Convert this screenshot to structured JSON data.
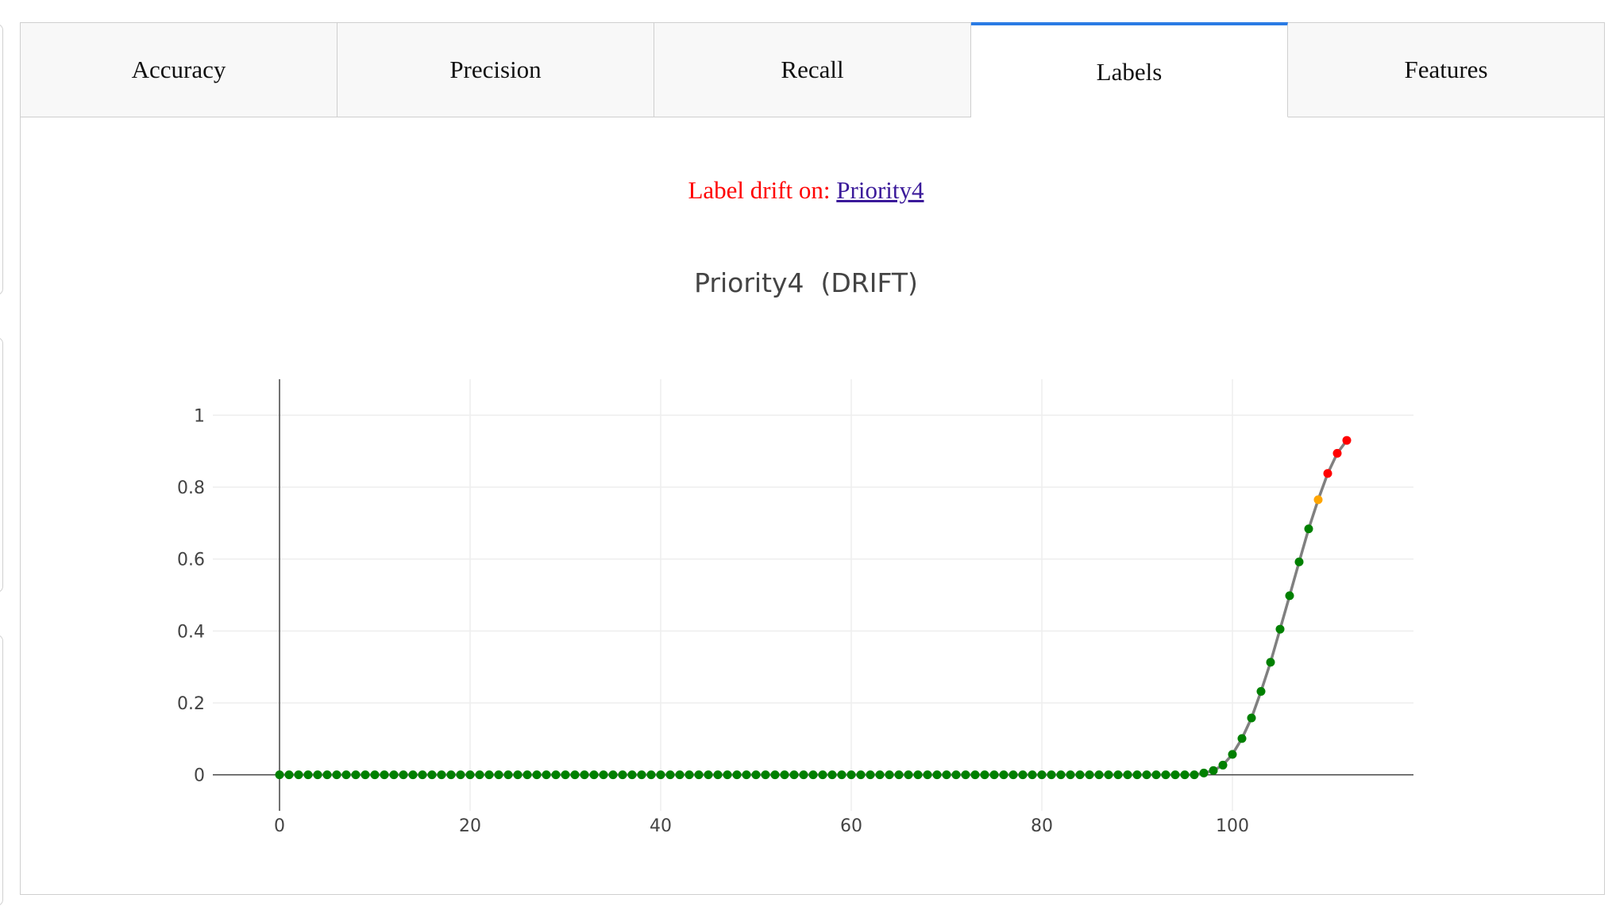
{
  "tabs": [
    {
      "label": "Accuracy",
      "active": false
    },
    {
      "label": "Precision",
      "active": false
    },
    {
      "label": "Recall",
      "active": false
    },
    {
      "label": "Labels",
      "active": true
    },
    {
      "label": "Features",
      "active": false
    }
  ],
  "drift_notice": {
    "label": "Label drift on: ",
    "link_text": "Priority4"
  },
  "colors": {
    "ok": "#008000",
    "warning": "#ffa500",
    "drift": "#ff0000",
    "line": "#808080",
    "active_tab": "#2a7be4"
  },
  "chart_data": {
    "type": "line",
    "title": "Priority4  (DRIFT)",
    "xlabel": "",
    "ylabel": "",
    "xlim": [
      -7,
      119
    ],
    "ylim": [
      -0.1,
      1.1
    ],
    "xticks": [
      0,
      20,
      40,
      60,
      80,
      100
    ],
    "yticks": [
      0,
      0.2,
      0.4,
      0.6,
      0.8,
      1
    ],
    "ytick_labels": [
      "0",
      "0.2",
      "0.4",
      "0.6",
      "0.8",
      "1"
    ],
    "grid": true,
    "series": [
      {
        "x_start": 0,
        "y": [
          0,
          0,
          0,
          0,
          0,
          0,
          0,
          0,
          0,
          0,
          0,
          0,
          0,
          0,
          0,
          0,
          0,
          0,
          0,
          0,
          0,
          0,
          0,
          0,
          0,
          0,
          0,
          0,
          0,
          0,
          0,
          0,
          0,
          0,
          0,
          0,
          0,
          0,
          0,
          0,
          0,
          0,
          0,
          0,
          0,
          0,
          0,
          0,
          0,
          0,
          0,
          0,
          0,
          0,
          0,
          0,
          0,
          0,
          0,
          0,
          0,
          0,
          0,
          0,
          0,
          0,
          0,
          0,
          0,
          0,
          0,
          0,
          0,
          0,
          0,
          0,
          0,
          0,
          0,
          0,
          0,
          0,
          0,
          0,
          0,
          0,
          0,
          0,
          0,
          0,
          0,
          0,
          0,
          0,
          0,
          0,
          0,
          0.005,
          0.012,
          0.027,
          0.057,
          0.101,
          0.158,
          0.232,
          0.313,
          0.405,
          0.498,
          0.592,
          0.684,
          0.765,
          0.838,
          0.894,
          0.93
        ],
        "point_status": [
          "ok",
          "ok",
          "ok",
          "ok",
          "ok",
          "ok",
          "ok",
          "ok",
          "ok",
          "ok",
          "ok",
          "ok",
          "ok",
          "ok",
          "ok",
          "ok",
          "ok",
          "ok",
          "ok",
          "ok",
          "ok",
          "ok",
          "ok",
          "ok",
          "ok",
          "ok",
          "ok",
          "ok",
          "ok",
          "ok",
          "ok",
          "ok",
          "ok",
          "ok",
          "ok",
          "ok",
          "ok",
          "ok",
          "ok",
          "ok",
          "ok",
          "ok",
          "ok",
          "ok",
          "ok",
          "ok",
          "ok",
          "ok",
          "ok",
          "ok",
          "ok",
          "ok",
          "ok",
          "ok",
          "ok",
          "ok",
          "ok",
          "ok",
          "ok",
          "ok",
          "ok",
          "ok",
          "ok",
          "ok",
          "ok",
          "ok",
          "ok",
          "ok",
          "ok",
          "ok",
          "ok",
          "ok",
          "ok",
          "ok",
          "ok",
          "ok",
          "ok",
          "ok",
          "ok",
          "ok",
          "ok",
          "ok",
          "ok",
          "ok",
          "ok",
          "ok",
          "ok",
          "ok",
          "ok",
          "ok",
          "ok",
          "ok",
          "ok",
          "ok",
          "ok",
          "ok",
          "ok",
          "ok",
          "ok",
          "ok",
          "ok",
          "ok",
          "ok",
          "ok",
          "ok",
          "ok",
          "ok",
          "ok",
          "ok",
          "warning",
          "drift",
          "drift",
          "drift"
        ]
      }
    ]
  }
}
